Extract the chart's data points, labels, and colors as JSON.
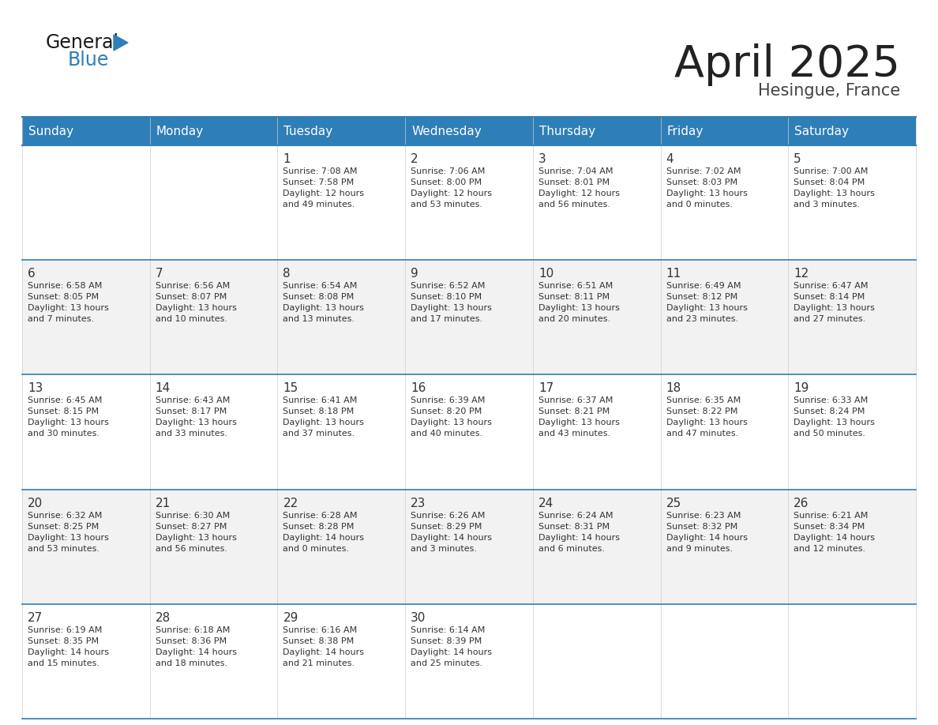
{
  "title": "April 2025",
  "subtitle": "Hesingue, France",
  "header_bg": "#2E7EB8",
  "header_text_color": "#FFFFFF",
  "cell_bg_light": "#F2F2F2",
  "cell_bg_white": "#FFFFFF",
  "border_color": "#2E7EB8",
  "text_color": "#333333",
  "days_of_week": [
    "Sunday",
    "Monday",
    "Tuesday",
    "Wednesday",
    "Thursday",
    "Friday",
    "Saturday"
  ],
  "calendar": [
    [
      {
        "day": "",
        "info": ""
      },
      {
        "day": "",
        "info": ""
      },
      {
        "day": "1",
        "info": "Sunrise: 7:08 AM\nSunset: 7:58 PM\nDaylight: 12 hours\nand 49 minutes."
      },
      {
        "day": "2",
        "info": "Sunrise: 7:06 AM\nSunset: 8:00 PM\nDaylight: 12 hours\nand 53 minutes."
      },
      {
        "day": "3",
        "info": "Sunrise: 7:04 AM\nSunset: 8:01 PM\nDaylight: 12 hours\nand 56 minutes."
      },
      {
        "day": "4",
        "info": "Sunrise: 7:02 AM\nSunset: 8:03 PM\nDaylight: 13 hours\nand 0 minutes."
      },
      {
        "day": "5",
        "info": "Sunrise: 7:00 AM\nSunset: 8:04 PM\nDaylight: 13 hours\nand 3 minutes."
      }
    ],
    [
      {
        "day": "6",
        "info": "Sunrise: 6:58 AM\nSunset: 8:05 PM\nDaylight: 13 hours\nand 7 minutes."
      },
      {
        "day": "7",
        "info": "Sunrise: 6:56 AM\nSunset: 8:07 PM\nDaylight: 13 hours\nand 10 minutes."
      },
      {
        "day": "8",
        "info": "Sunrise: 6:54 AM\nSunset: 8:08 PM\nDaylight: 13 hours\nand 13 minutes."
      },
      {
        "day": "9",
        "info": "Sunrise: 6:52 AM\nSunset: 8:10 PM\nDaylight: 13 hours\nand 17 minutes."
      },
      {
        "day": "10",
        "info": "Sunrise: 6:51 AM\nSunset: 8:11 PM\nDaylight: 13 hours\nand 20 minutes."
      },
      {
        "day": "11",
        "info": "Sunrise: 6:49 AM\nSunset: 8:12 PM\nDaylight: 13 hours\nand 23 minutes."
      },
      {
        "day": "12",
        "info": "Sunrise: 6:47 AM\nSunset: 8:14 PM\nDaylight: 13 hours\nand 27 minutes."
      }
    ],
    [
      {
        "day": "13",
        "info": "Sunrise: 6:45 AM\nSunset: 8:15 PM\nDaylight: 13 hours\nand 30 minutes."
      },
      {
        "day": "14",
        "info": "Sunrise: 6:43 AM\nSunset: 8:17 PM\nDaylight: 13 hours\nand 33 minutes."
      },
      {
        "day": "15",
        "info": "Sunrise: 6:41 AM\nSunset: 8:18 PM\nDaylight: 13 hours\nand 37 minutes."
      },
      {
        "day": "16",
        "info": "Sunrise: 6:39 AM\nSunset: 8:20 PM\nDaylight: 13 hours\nand 40 minutes."
      },
      {
        "day": "17",
        "info": "Sunrise: 6:37 AM\nSunset: 8:21 PM\nDaylight: 13 hours\nand 43 minutes."
      },
      {
        "day": "18",
        "info": "Sunrise: 6:35 AM\nSunset: 8:22 PM\nDaylight: 13 hours\nand 47 minutes."
      },
      {
        "day": "19",
        "info": "Sunrise: 6:33 AM\nSunset: 8:24 PM\nDaylight: 13 hours\nand 50 minutes."
      }
    ],
    [
      {
        "day": "20",
        "info": "Sunrise: 6:32 AM\nSunset: 8:25 PM\nDaylight: 13 hours\nand 53 minutes."
      },
      {
        "day": "21",
        "info": "Sunrise: 6:30 AM\nSunset: 8:27 PM\nDaylight: 13 hours\nand 56 minutes."
      },
      {
        "day": "22",
        "info": "Sunrise: 6:28 AM\nSunset: 8:28 PM\nDaylight: 14 hours\nand 0 minutes."
      },
      {
        "day": "23",
        "info": "Sunrise: 6:26 AM\nSunset: 8:29 PM\nDaylight: 14 hours\nand 3 minutes."
      },
      {
        "day": "24",
        "info": "Sunrise: 6:24 AM\nSunset: 8:31 PM\nDaylight: 14 hours\nand 6 minutes."
      },
      {
        "day": "25",
        "info": "Sunrise: 6:23 AM\nSunset: 8:32 PM\nDaylight: 14 hours\nand 9 minutes."
      },
      {
        "day": "26",
        "info": "Sunrise: 6:21 AM\nSunset: 8:34 PM\nDaylight: 14 hours\nand 12 minutes."
      }
    ],
    [
      {
        "day": "27",
        "info": "Sunrise: 6:19 AM\nSunset: 8:35 PM\nDaylight: 14 hours\nand 15 minutes."
      },
      {
        "day": "28",
        "info": "Sunrise: 6:18 AM\nSunset: 8:36 PM\nDaylight: 14 hours\nand 18 minutes."
      },
      {
        "day": "29",
        "info": "Sunrise: 6:16 AM\nSunset: 8:38 PM\nDaylight: 14 hours\nand 21 minutes."
      },
      {
        "day": "30",
        "info": "Sunrise: 6:14 AM\nSunset: 8:39 PM\nDaylight: 14 hours\nand 25 minutes."
      },
      {
        "day": "",
        "info": ""
      },
      {
        "day": "",
        "info": ""
      },
      {
        "day": "",
        "info": ""
      }
    ]
  ]
}
